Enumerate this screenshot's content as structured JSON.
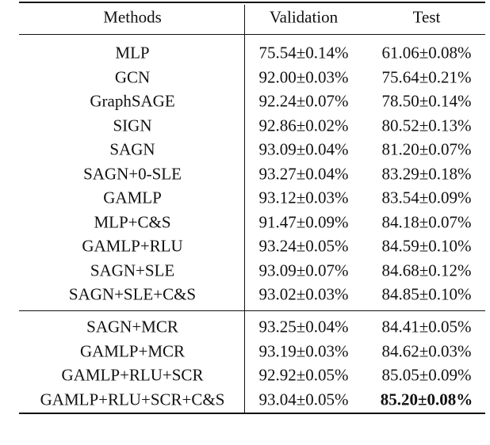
{
  "table": {
    "header": [
      "Methods",
      "Validation",
      "Test"
    ],
    "groups": [
      [
        [
          "MLP",
          "75.54±0.14%",
          "61.06±0.08%"
        ],
        [
          "GCN",
          "92.00±0.03%",
          "75.64±0.21%"
        ],
        [
          "GraphSAGE",
          "92.24±0.07%",
          "78.50±0.14%"
        ],
        [
          "SIGN",
          "92.86±0.02%",
          "80.52±0.13%"
        ],
        [
          "SAGN",
          "93.09±0.04%",
          "81.20±0.07%"
        ],
        [
          "SAGN+0-SLE",
          "93.27±0.04%",
          "83.29±0.18%"
        ],
        [
          "GAMLP",
          "93.12±0.03%",
          "83.54±0.09%"
        ],
        [
          "MLP+C&S",
          "91.47±0.09%",
          "84.18±0.07%"
        ],
        [
          "GAMLP+RLU",
          "93.24±0.05%",
          "84.59±0.10%"
        ],
        [
          "SAGN+SLE",
          "93.09±0.07%",
          "84.68±0.12%"
        ],
        [
          "SAGN+SLE+C&S",
          "93.02±0.03%",
          "84.85±0.10%"
        ]
      ],
      [
        [
          "SAGN+MCR",
          "93.25±0.04%",
          "84.41±0.05%"
        ],
        [
          "GAMLP+MCR",
          "93.19±0.03%",
          "84.62±0.03%"
        ],
        [
          "GAMLP+RLU+SCR",
          "92.92±0.05%",
          "85.05±0.09%"
        ],
        [
          "GAMLP+RLU+SCR+C&S",
          "93.04±0.05%",
          "85.20±0.08%"
        ]
      ]
    ]
  }
}
